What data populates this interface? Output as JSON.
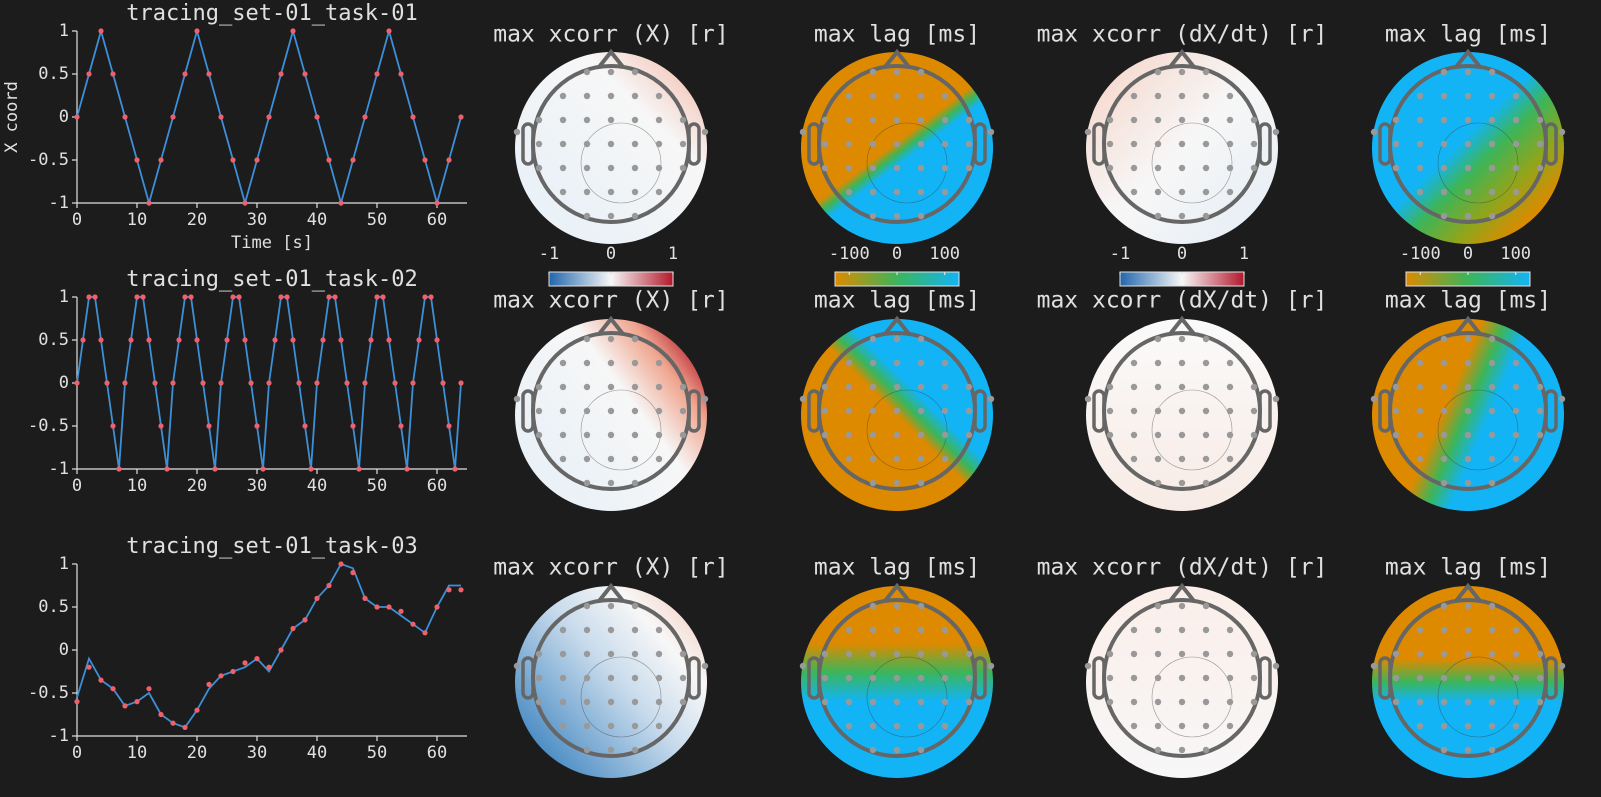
{
  "chart_data": [
    {
      "type": "line",
      "title": "tracing_set-01_task-01",
      "xlabel": "Time [s]",
      "ylabel": "X coord",
      "x": [
        0,
        2,
        4,
        6,
        8,
        10,
        12,
        14,
        16,
        18,
        20,
        22,
        24,
        26,
        28,
        30,
        32,
        34,
        36,
        38,
        40,
        42,
        44,
        46,
        48,
        50,
        52,
        54,
        56,
        58,
        60,
        62,
        64
      ],
      "series": [
        {
          "mode": "lines",
          "color": "#3d8fd6",
          "values": [
            0,
            0.5,
            1,
            0.5,
            0,
            -0.5,
            -1,
            -0.5,
            0,
            0.5,
            1,
            0.5,
            0,
            -0.5,
            -1,
            -0.5,
            0,
            0.5,
            1,
            0.5,
            0,
            -0.5,
            -1,
            -0.5,
            0,
            0.5,
            1,
            0.5,
            0,
            -0.5,
            -1,
            -0.5,
            0
          ]
        },
        {
          "mode": "markers",
          "color": "#f0606a",
          "values": [
            0,
            0.5,
            1,
            0.5,
            0,
            -0.5,
            -1,
            -0.5,
            0,
            0.5,
            1,
            0.5,
            0,
            -0.5,
            -1,
            -0.5,
            0,
            0.5,
            1,
            0.5,
            0,
            -0.5,
            -1,
            -0.5,
            0,
            0.5,
            1,
            0.5,
            0,
            -0.5,
            -1,
            -0.5,
            0
          ]
        }
      ],
      "xlim": [
        0,
        65
      ],
      "xticks": [
        0,
        10,
        20,
        30,
        40,
        50,
        60
      ],
      "ylim": [
        -1,
        1
      ],
      "yticks": [
        -1,
        -0.5,
        0,
        0.5,
        1
      ]
    },
    {
      "type": "line",
      "title": "tracing_set-01_task-02",
      "x": [
        0,
        1,
        2,
        3,
        4,
        5,
        6,
        7,
        8,
        9,
        10,
        11,
        12,
        13,
        14,
        15,
        16,
        17,
        18,
        19,
        20,
        21,
        22,
        23,
        24,
        25,
        26,
        27,
        28,
        29,
        30,
        31,
        32,
        33,
        34,
        35,
        36,
        37,
        38,
        39,
        40,
        41,
        42,
        43,
        44,
        45,
        46,
        47,
        48,
        49,
        50,
        51,
        52,
        53,
        54,
        55,
        56,
        57,
        58,
        59,
        60,
        61,
        62,
        63,
        64
      ],
      "series": [
        {
          "mode": "lines",
          "color": "#3d8fd6",
          "values": [
            0,
            0.5,
            1,
            1,
            0.5,
            0,
            -0.5,
            -1,
            0,
            0.5,
            1,
            1,
            0.5,
            0,
            -0.5,
            -1,
            0,
            0.5,
            1,
            1,
            0.5,
            0,
            -0.5,
            -1,
            0,
            0.5,
            1,
            1,
            0.5,
            0,
            -0.5,
            -1,
            0,
            0.5,
            1,
            1,
            0.5,
            0,
            -0.5,
            -1,
            0,
            0.5,
            1,
            1,
            0.5,
            0,
            -0.5,
            -1,
            0,
            0.5,
            1,
            1,
            0.5,
            0,
            -0.5,
            -1,
            0,
            0.5,
            1,
            1,
            0.5,
            0,
            -0.5,
            -1,
            0
          ]
        },
        {
          "mode": "markers",
          "color": "#f0606a",
          "values": [
            0,
            0.5,
            1,
            1,
            0.5,
            0,
            -0.5,
            -1,
            0,
            0.5,
            1,
            1,
            0.5,
            0,
            -0.5,
            -1,
            0,
            0.5,
            1,
            1,
            0.5,
            0,
            -0.5,
            -1,
            0,
            0.5,
            1,
            1,
            0.5,
            0,
            -0.5,
            -1,
            0,
            0.5,
            1,
            1,
            0.5,
            0,
            -0.5,
            -1,
            0,
            0.5,
            1,
            1,
            0.5,
            0,
            -0.5,
            -1,
            0,
            0.5,
            1,
            1,
            0.5,
            0,
            -0.5,
            -1,
            0,
            0.5,
            1,
            1,
            0.5,
            0,
            -0.5,
            -1,
            0
          ]
        }
      ],
      "xlim": [
        0,
        65
      ],
      "xticks": [
        0,
        10,
        20,
        30,
        40,
        50,
        60
      ],
      "ylim": [
        -1,
        1
      ],
      "yticks": [
        -1,
        -0.5,
        0,
        0.5,
        1
      ]
    },
    {
      "type": "line",
      "title": "tracing_set-01_task-03",
      "x": [
        0,
        2,
        4,
        6,
        8,
        10,
        12,
        14,
        16,
        18,
        20,
        22,
        24,
        26,
        28,
        30,
        32,
        34,
        36,
        38,
        40,
        42,
        44,
        46,
        48,
        50,
        52,
        54,
        56,
        58,
        60,
        62,
        64
      ],
      "series": [
        {
          "mode": "lines",
          "color": "#3d8fd6",
          "values": [
            -0.55,
            -0.1,
            -0.35,
            -0.45,
            -0.65,
            -0.6,
            -0.5,
            -0.75,
            -0.85,
            -0.9,
            -0.7,
            -0.45,
            -0.3,
            -0.25,
            -0.2,
            -0.1,
            -0.25,
            0,
            0.25,
            0.35,
            0.6,
            0.75,
            1,
            0.95,
            0.6,
            0.5,
            0.5,
            0.4,
            0.3,
            0.2,
            0.5,
            0.75,
            0.75
          ]
        },
        {
          "mode": "markers",
          "color": "#f0606a",
          "values": [
            -0.6,
            -0.2,
            -0.35,
            -0.45,
            -0.65,
            -0.6,
            -0.45,
            -0.75,
            -0.85,
            -0.9,
            -0.7,
            -0.4,
            -0.3,
            -0.25,
            -0.15,
            -0.1,
            -0.2,
            0,
            0.25,
            0.35,
            0.6,
            0.75,
            1,
            0.9,
            0.6,
            0.5,
            0.5,
            0.45,
            0.3,
            0.2,
            0.5,
            0.7,
            0.7
          ]
        }
      ],
      "xlim": [
        0,
        65
      ],
      "xticks": [
        0,
        10,
        20,
        30,
        40,
        50,
        60
      ],
      "ylim": [
        -1,
        1
      ],
      "yticks": [
        -1,
        -0.5,
        0,
        0.5,
        1
      ]
    }
  ],
  "topomap_titles": [
    [
      "max xcorr (X) [r]",
      "max lag [ms]",
      "max xcorr (dX/dt) [r]",
      "max lag [ms]"
    ],
    [
      "max xcorr (X) [r]",
      "max lag [ms]",
      "max xcorr (dX/dt) [r]",
      "max lag [ms]"
    ],
    [
      "max xcorr (X) [r]",
      "max lag [ms]",
      "max xcorr (dX/dt) [r]",
      "max lag [ms]"
    ]
  ],
  "colorbars": [
    {
      "lim": [
        -1,
        1
      ],
      "ticks": [
        -1,
        0,
        1
      ],
      "colors": [
        "#2166ac",
        "#f7f7f7",
        "#b2182b"
      ]
    },
    {
      "lim": [
        -130,
        130
      ],
      "ticks": [
        -100,
        0,
        100
      ],
      "colors": [
        "#dd8a00",
        "#3cb55a",
        "#12b4f5"
      ]
    },
    {
      "lim": [
        -1,
        1
      ],
      "ticks": [
        -1,
        0,
        1
      ],
      "colors": [
        "#2166ac",
        "#f7f7f7",
        "#b2182b"
      ]
    },
    {
      "lim": [
        -130,
        130
      ],
      "ticks": [
        -100,
        0,
        100
      ],
      "colors": [
        "#dd8a00",
        "#3cb55a",
        "#12b4f5"
      ]
    }
  ]
}
